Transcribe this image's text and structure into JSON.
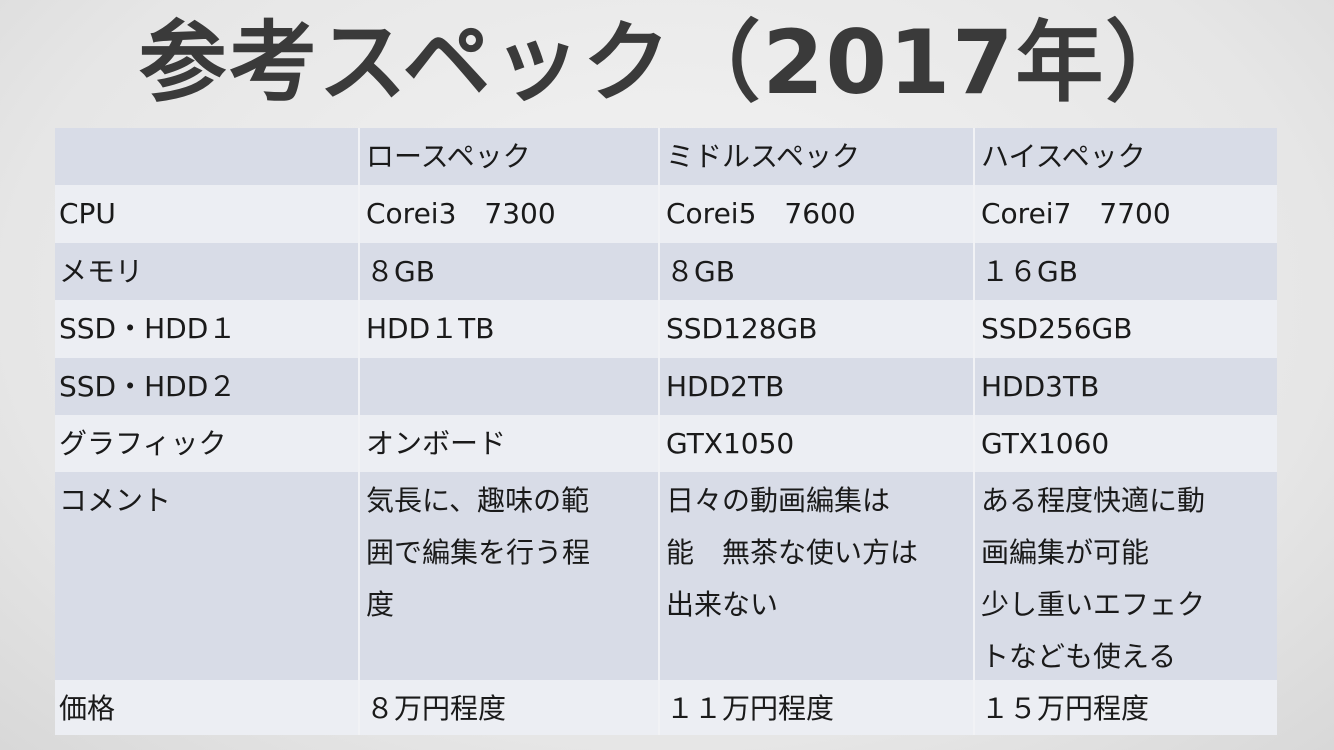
{
  "title": "参考スペック（2017年）",
  "table": {
    "header": [
      "ロースペック",
      "ミドルスペック",
      "ハイスペック"
    ],
    "rows": [
      [
        "CPU",
        "Corei3　7300",
        "Corei5　7600",
        "Corei7　7700"
      ],
      [
        "メモリ",
        "８GB",
        "８GB",
        "１６GB"
      ],
      [
        "SSD・HDD１",
        "HDD１TB",
        "SSD128GB",
        "SSD256GB"
      ],
      [
        "SSD・HDD２",
        null,
        "HDD2TB",
        "HDD3TB"
      ],
      [
        "グラフィック",
        "オンボード",
        "GTX1050",
        "GTX1060"
      ],
      [
        "コメント",
        [
          "気長に、趣味の範",
          "囲で編集を行う程",
          "度"
        ],
        [
          "日々の動画編集は",
          "能　無茶な使い方は",
          "出来ない"
        ],
        [
          "ある程度快適に動",
          "画編集が可能",
          "少し重いエフェク",
          "トなども使える"
        ]
      ],
      [
        "価格",
        "８万円程度",
        "１１万円程度",
        "１５万円程度"
      ]
    ]
  }
}
